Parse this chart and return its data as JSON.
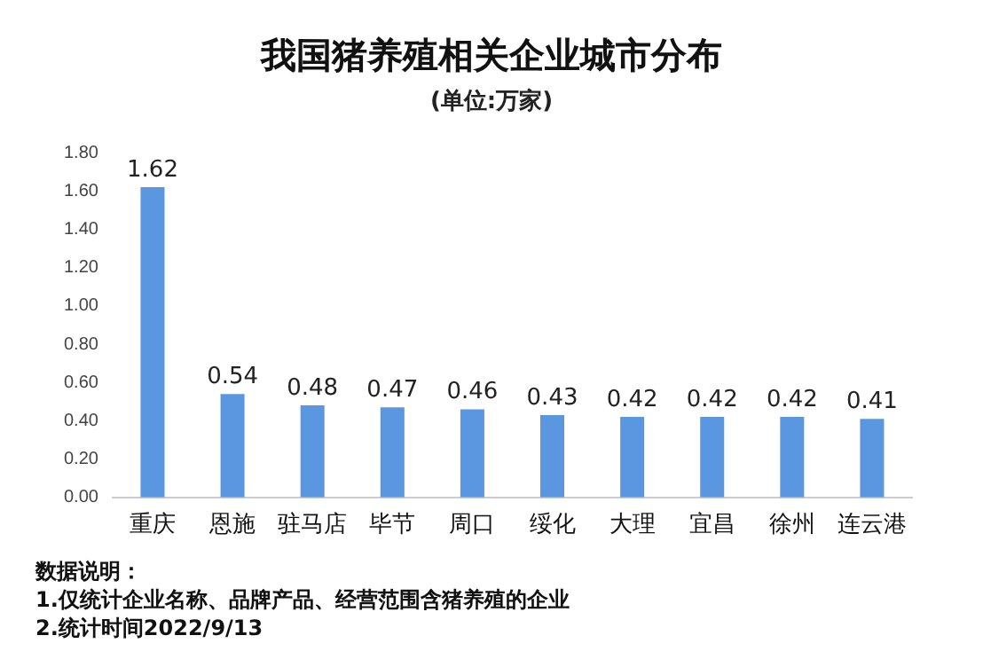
{
  "chart_data": {
    "type": "bar",
    "title": "我国猪养殖相关企业城市分布",
    "subtitle": "(单位:万家)",
    "categories": [
      "重庆",
      "恩施",
      "驻马店",
      "毕节",
      "周口",
      "绥化",
      "大理",
      "宜昌",
      "徐州",
      "连云港"
    ],
    "values": [
      1.62,
      0.54,
      0.48,
      0.47,
      0.46,
      0.43,
      0.42,
      0.42,
      0.42,
      0.41
    ],
    "color": "#5b96e0",
    "ylim": [
      0,
      1.8
    ],
    "yticks": [
      {
        "value": 0,
        "label": "0.00"
      },
      {
        "value": 0.2,
        "label": "0.20"
      },
      {
        "value": 0.4,
        "label": "0.40"
      },
      {
        "value": 0.6,
        "label": "0.60"
      },
      {
        "value": 0.8,
        "label": "0.80"
      },
      {
        "value": 1,
        "label": "1.00"
      },
      {
        "value": 1.2,
        "label": "1.20"
      },
      {
        "value": 1.4,
        "label": "1.40"
      },
      {
        "value": 1.6,
        "label": "1.60"
      },
      {
        "value": 1.8,
        "label": "1.80"
      }
    ],
    "grid": false,
    "data_labels": true,
    "annotations": [
      "数据说明：",
      "1.仅统计企业名称、品牌产品、经营范围含猪养殖的企业",
      "2.统计时间2022/9/13"
    ]
  }
}
